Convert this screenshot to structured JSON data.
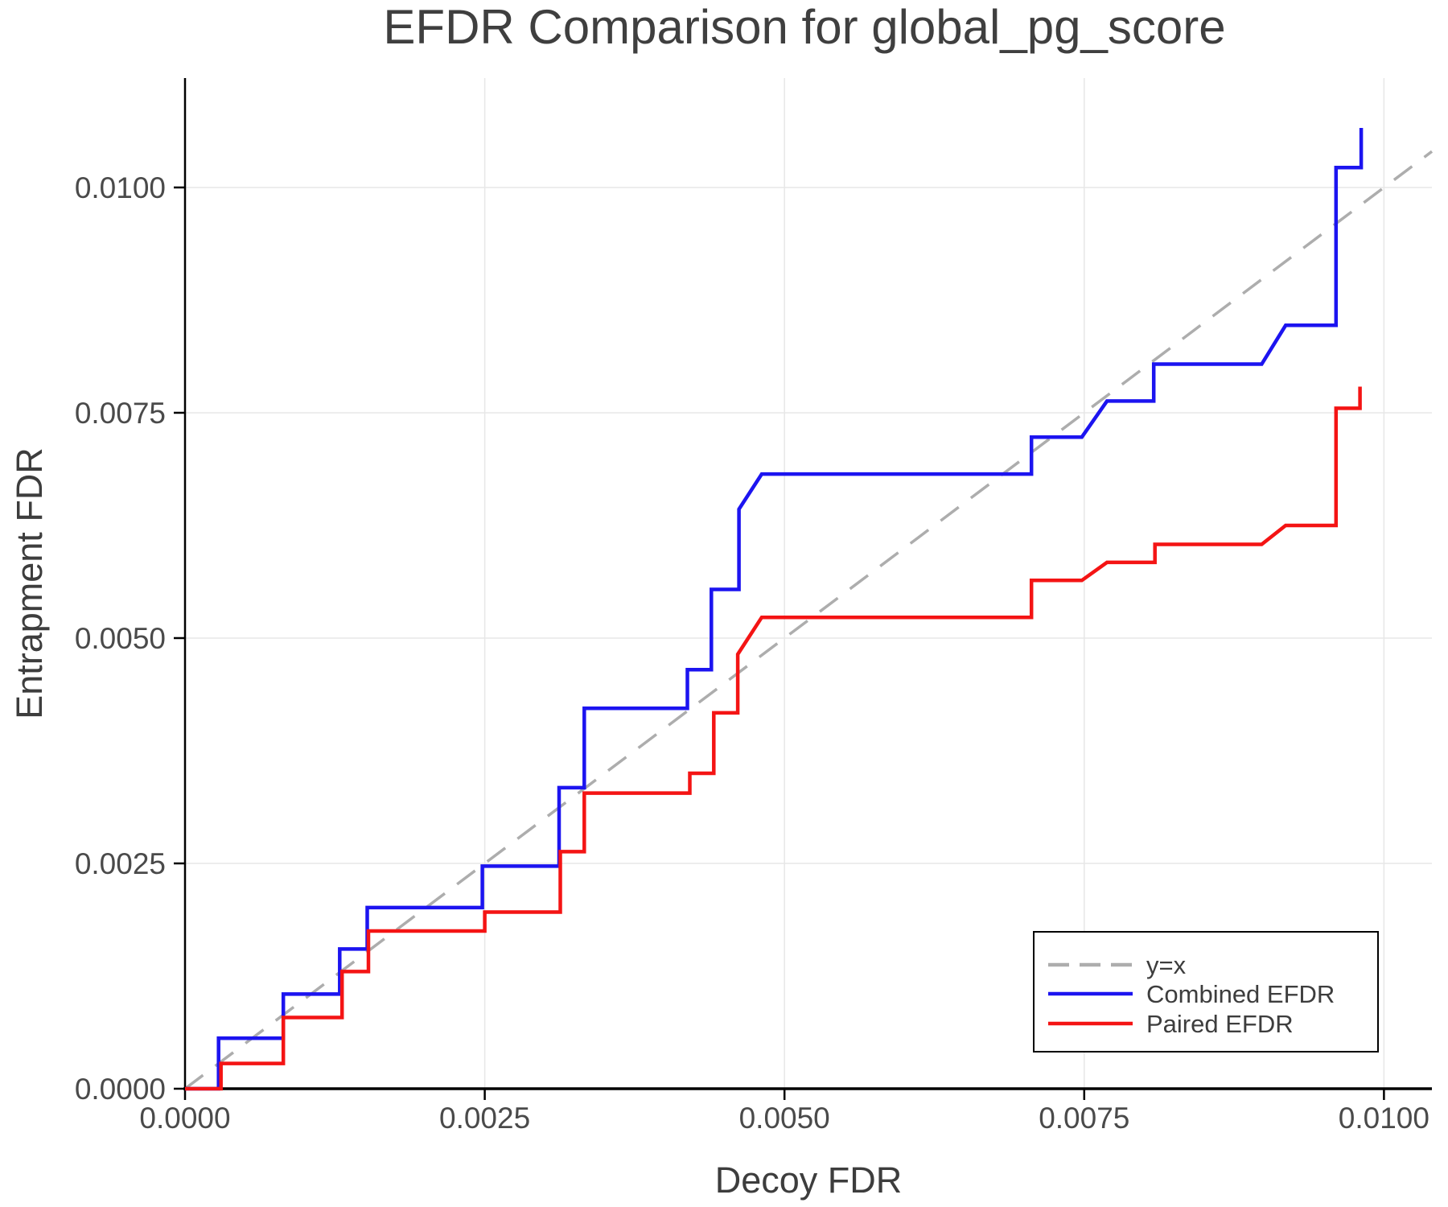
{
  "chart_data": {
    "type": "line",
    "title": "EFDR Comparison for global_pg_score",
    "xlabel": "Decoy FDR",
    "ylabel": "Entrapment FDR",
    "xlim": [
      0.0,
      0.0104
    ],
    "ylim": [
      0.0,
      0.011214
    ],
    "grid": true,
    "legend_position": "lower right",
    "x_ticks": [
      0.0,
      0.0025,
      0.005,
      0.0075,
      0.01
    ],
    "x_tick_labels": [
      "0.0000",
      "0.0025",
      "0.0050",
      "0.0075",
      "0.0100"
    ],
    "y_ticks": [
      0.0,
      0.0025,
      0.005,
      0.0075,
      0.01
    ],
    "y_tick_labels": [
      "0.0000",
      "0.0025",
      "0.0050",
      "0.0075",
      "0.0100"
    ],
    "colors": {
      "reference": "#adadad",
      "combined": "#1c14f0",
      "paired": "#f41414",
      "grid": "#e7e7e7",
      "axis": "#000000"
    },
    "series": [
      {
        "name": "y=x",
        "style": "dashed",
        "color": "#adadad",
        "points": [
          [
            0.0,
            0.0
          ],
          [
            0.0104,
            0.0104
          ]
        ]
      },
      {
        "name": "Combined EFDR",
        "style": "solid",
        "color": "#1c14f0",
        "points": [
          [
            0.0,
            0.0
          ],
          [
            0.00028,
            0.0
          ],
          [
            0.00028,
            0.00056
          ],
          [
            0.00082,
            0.00056
          ],
          [
            0.00082,
            0.00105
          ],
          [
            0.00129,
            0.00105
          ],
          [
            0.00129,
            0.00155
          ],
          [
            0.00152,
            0.00155
          ],
          [
            0.00152,
            0.00201
          ],
          [
            0.00248,
            0.00201
          ],
          [
            0.00248,
            0.00247
          ],
          [
            0.00312,
            0.00247
          ],
          [
            0.00312,
            0.00334
          ],
          [
            0.00333,
            0.00334
          ],
          [
            0.00333,
            0.00422
          ],
          [
            0.00419,
            0.00422
          ],
          [
            0.00419,
            0.00465
          ],
          [
            0.00439,
            0.00465
          ],
          [
            0.00439,
            0.00554
          ],
          [
            0.00462,
            0.00554
          ],
          [
            0.00462,
            0.00643
          ],
          [
            0.00481,
            0.00682
          ],
          [
            0.00706,
            0.00682
          ],
          [
            0.00706,
            0.00723
          ],
          [
            0.00748,
            0.00723
          ],
          [
            0.00769,
            0.00763
          ],
          [
            0.00808,
            0.00763
          ],
          [
            0.00808,
            0.00804
          ],
          [
            0.00898,
            0.00804
          ],
          [
            0.00918,
            0.00847
          ],
          [
            0.0096,
            0.00847
          ],
          [
            0.0096,
            0.01022
          ],
          [
            0.00981,
            0.01022
          ],
          [
            0.00981,
            0.01066
          ]
        ]
      },
      {
        "name": "Paired EFDR",
        "style": "solid",
        "color": "#f41414",
        "points": [
          [
            0.0,
            0.0
          ],
          [
            0.0003,
            0.0
          ],
          [
            0.0003,
            0.00028
          ],
          [
            0.00082,
            0.00028
          ],
          [
            0.00082,
            0.00079
          ],
          [
            0.00131,
            0.00079
          ],
          [
            0.00131,
            0.0013
          ],
          [
            0.00153,
            0.0013
          ],
          [
            0.00153,
            0.00175
          ],
          [
            0.0025,
            0.00175
          ],
          [
            0.0025,
            0.00196
          ],
          [
            0.00313,
            0.00196
          ],
          [
            0.00313,
            0.00263
          ],
          [
            0.00333,
            0.00263
          ],
          [
            0.00333,
            0.00328
          ],
          [
            0.00421,
            0.00328
          ],
          [
            0.00421,
            0.0035
          ],
          [
            0.00441,
            0.0035
          ],
          [
            0.00441,
            0.00417
          ],
          [
            0.00461,
            0.00417
          ],
          [
            0.00461,
            0.00482
          ],
          [
            0.00481,
            0.00523
          ],
          [
            0.00706,
            0.00523
          ],
          [
            0.00706,
            0.00564
          ],
          [
            0.00748,
            0.00564
          ],
          [
            0.00769,
            0.00584
          ],
          [
            0.00809,
            0.00584
          ],
          [
            0.00809,
            0.00604
          ],
          [
            0.00898,
            0.00604
          ],
          [
            0.00918,
            0.00625
          ],
          [
            0.0096,
            0.00625
          ],
          [
            0.0096,
            0.00755
          ],
          [
            0.0098,
            0.00755
          ],
          [
            0.0098,
            0.00779
          ]
        ]
      }
    ]
  }
}
